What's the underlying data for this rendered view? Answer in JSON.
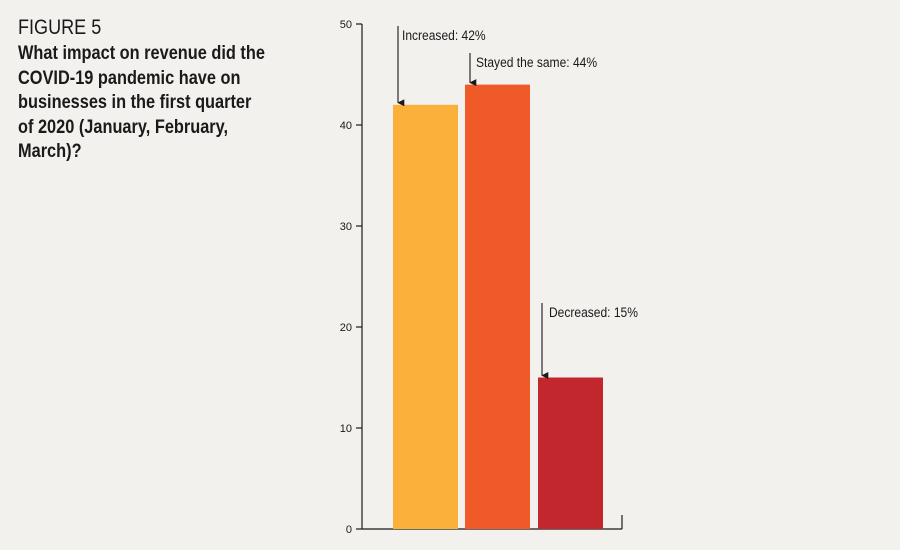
{
  "figure_label": "FIGURE 5",
  "title": "What impact on revenue did the COVID-19 pandemic have on businesses in the first quarter of 2020 (January, February, March)?",
  "chart_data": {
    "type": "bar",
    "categories": [
      "Increased",
      "Stayed the same",
      "Decreased"
    ],
    "values": [
      42,
      44,
      15
    ],
    "labels": [
      "Increased: 42%",
      "Stayed the same: 44%",
      "Decreased: 15%"
    ],
    "colors": [
      "#fbb03b",
      "#f05a28",
      "#c1272d"
    ],
    "ylim": [
      0,
      50
    ],
    "yticks": [
      0,
      10,
      20,
      30,
      40,
      50
    ],
    "grid": false,
    "title": "What impact on revenue did the COVID-19 pandemic have on businesses in the first quarter of 2020 (January, February, March)?",
    "xlabel": "",
    "ylabel": ""
  }
}
